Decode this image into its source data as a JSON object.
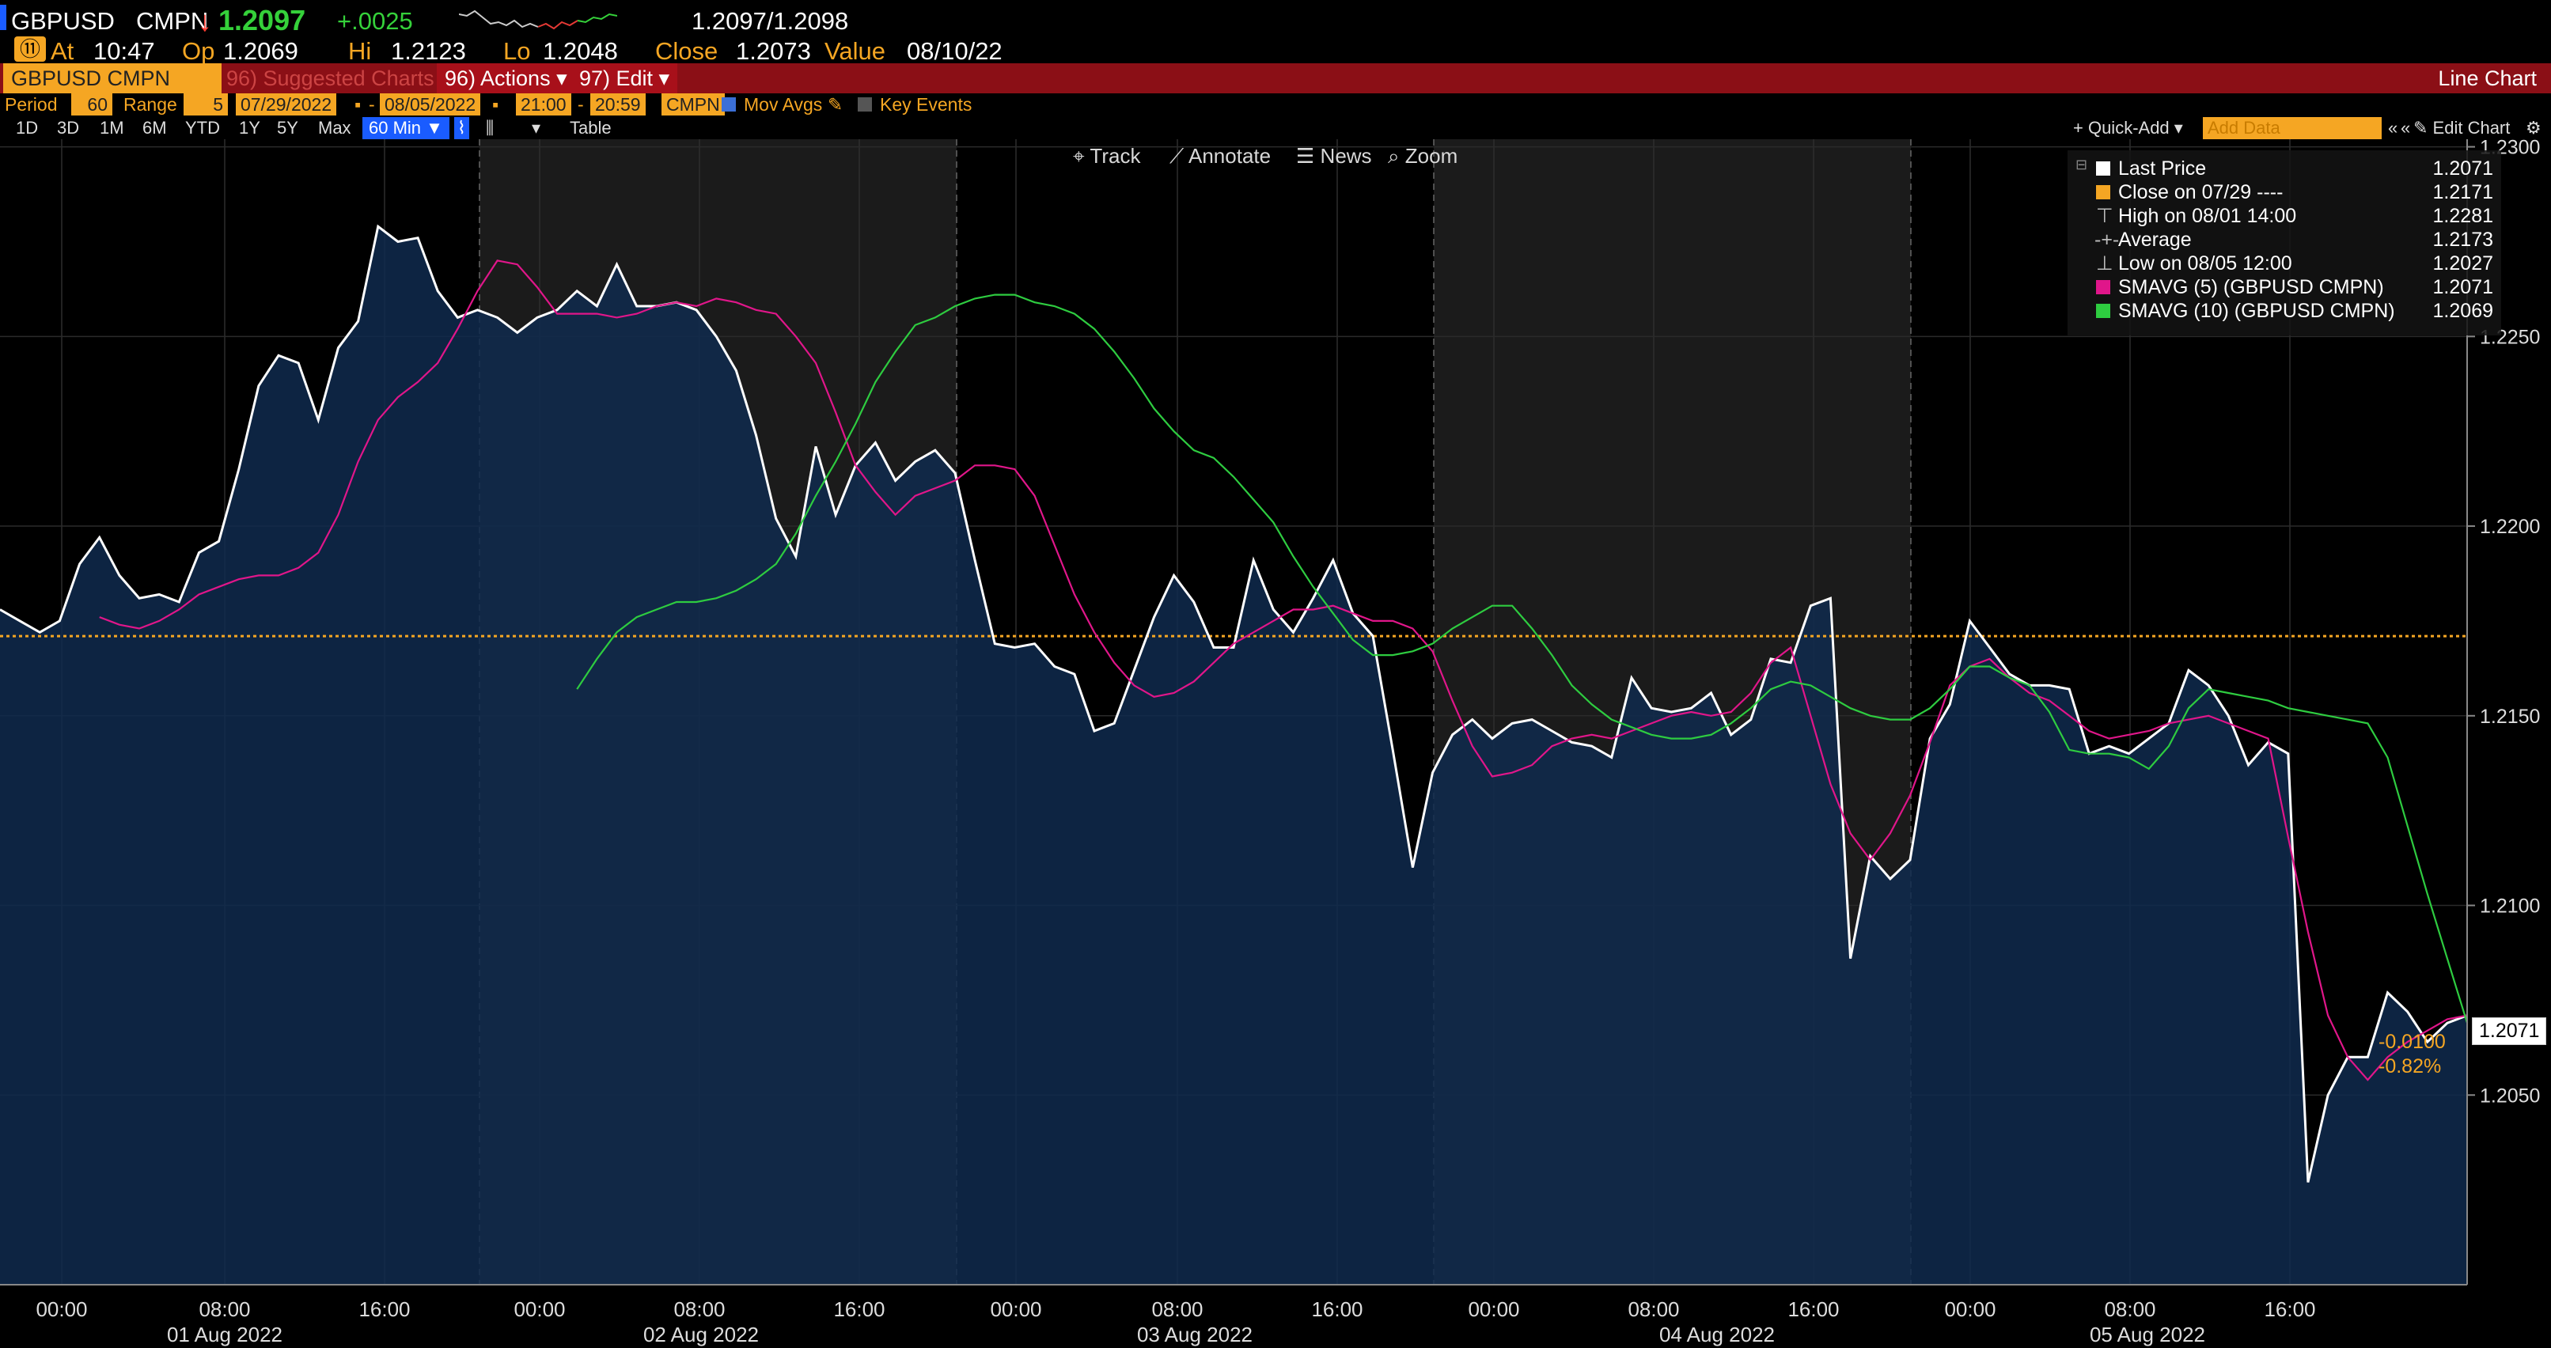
{
  "quote": {
    "ticker": "GBPUSD",
    "source": "CMPN",
    "arrow": "↓",
    "last": "1.2097",
    "change": "+.0025",
    "bid_ask": "1.2097/1.2098",
    "at_label": "At",
    "time": "10:47",
    "op_label": "Op",
    "open": "1.2069",
    "hi_label": "Hi",
    "high": "1.2123",
    "lo_label": "Lo",
    "low": "1.2048",
    "close_label": "Close",
    "close": "1.2073",
    "value_label": "Value",
    "date": "08/10/22"
  },
  "toolbar": {
    "security": "GBPUSD CMPN Curn",
    "suggested": "96) Suggested Charts",
    "actions": "96) Actions ▾",
    "edit": "97) Edit ▾",
    "chart_type": "Line Chart"
  },
  "period_bar": {
    "period_label": "Period",
    "period_value": "60",
    "range_label": "Range",
    "range_value": "5",
    "start_date": "07/29/2022",
    "dash": "-",
    "end_date": "08/05/2022",
    "start_time": "21:00",
    "end_time": "20:59",
    "source": "CMPN",
    "mov_avgs": "Mov Avgs",
    "key_events": "Key Events"
  },
  "range_buttons": [
    "1D",
    "3D",
    "1M",
    "6M",
    "YTD",
    "1Y",
    "5Y",
    "Max"
  ],
  "interval_button": "60 Min ▼",
  "table_button": "Table",
  "quick_add": "+ Quick-Add ▾",
  "add_data_placeholder": "Add Data",
  "edit_chart": "✎ Edit Chart",
  "tools": {
    "track": "Track",
    "annotate": "Annotate",
    "news": "News",
    "zoom": "Zoom"
  },
  "legend": [
    {
      "label": "Last Price",
      "value": "1.2071",
      "color": "#ffffff"
    },
    {
      "label": "Close on 07/29 ----",
      "value": "1.2171",
      "color": "#f5a623"
    },
    {
      "label": "High on 08/01 14:00",
      "value": "1.2281",
      "color": "#bbbbbb"
    },
    {
      "label": "Average",
      "value": "1.2173",
      "color": "#bbbbbb"
    },
    {
      "label": "Low on 08/05 12:00",
      "value": "1.2027",
      "color": "#bbbbbb"
    },
    {
      "label": "SMAVG (5) (GBPUSD CMPN)",
      "value": "1.2071",
      "color": "#e0168a"
    },
    {
      "label": "SMAVG (10) (GBPUSD CMPN)",
      "value": "1.2069",
      "color": "#2ecc40"
    }
  ],
  "right_labels": {
    "last_price": "1.2071",
    "net_change": "-0.0100",
    "pct_change": "-0.82%"
  },
  "chart_data": {
    "type": "line",
    "ylim": [
      1.2,
      1.2302
    ],
    "yticks": [
      "1.2300",
      "1.2250",
      "1.2200",
      "1.2150",
      "1.2100",
      "1.2050"
    ],
    "ytick_values": [
      1.23,
      1.225,
      1.22,
      1.215,
      1.21,
      1.205
    ],
    "reference_line": 1.2171,
    "x_hour_labels": [
      "00:00",
      "08:00",
      "16:00",
      "00:00",
      "08:00",
      "16:00",
      "00:00",
      "08:00",
      "16:00",
      "00:00",
      "08:00",
      "16:00",
      "00:00",
      "08:00",
      "16:00"
    ],
    "x_day_labels": [
      "01 Aug 2022",
      "02 Aug 2022",
      "03 Aug 2022",
      "04 Aug 2022",
      "05 Aug 2022"
    ],
    "series": [
      {
        "name": "Last Price",
        "color": "#ffffff",
        "values": [
          1.2178,
          1.2175,
          1.2172,
          1.2175,
          1.219,
          1.2197,
          1.2187,
          1.2181,
          1.2182,
          1.218,
          1.2193,
          1.2196,
          1.2215,
          1.2237,
          1.2245,
          1.2243,
          1.2228,
          1.2247,
          1.2254,
          1.2279,
          1.2275,
          1.2276,
          1.2262,
          1.2255,
          1.2257,
          1.2255,
          1.2251,
          1.2255,
          1.2257,
          1.2262,
          1.2258,
          1.2269,
          1.2258,
          1.2258,
          1.2259,
          1.2257,
          1.225,
          1.2241,
          1.2224,
          1.2202,
          1.2192,
          1.2221,
          1.2203,
          1.2216,
          1.2222,
          1.2212,
          1.2217,
          1.222,
          1.2214,
          1.2191,
          1.2169,
          1.2168,
          1.2169,
          1.2163,
          1.2161,
          1.2146,
          1.2148,
          1.2162,
          1.2176,
          1.2187,
          1.218,
          1.2168,
          1.2168,
          1.2191,
          1.2178,
          1.2172,
          1.2181,
          1.2191,
          1.2177,
          1.2171,
          1.2141,
          1.211,
          1.2135,
          1.2145,
          1.2149,
          1.2144,
          1.2148,
          1.2149,
          1.2146,
          1.2143,
          1.2142,
          1.2139,
          1.216,
          1.2152,
          1.2151,
          1.2152,
          1.2156,
          1.2145,
          1.2149,
          1.2165,
          1.2164,
          1.2179,
          1.2181,
          1.2086,
          1.2113,
          1.2107,
          1.2112,
          1.2144,
          1.2153,
          1.2175,
          1.2168,
          1.2161,
          1.2158,
          1.2158,
          1.2157,
          1.214,
          1.2142,
          1.214,
          1.2144,
          1.2148,
          1.2162,
          1.2158,
          1.215,
          1.2137,
          1.2143,
          1.214,
          1.2027,
          1.205,
          1.206,
          1.206,
          1.2077,
          1.2072,
          1.2064,
          1.2069,
          1.2071
        ]
      },
      {
        "name": "SMAVG (5) (GBPUSD CMPN)",
        "color": "#e0168a",
        "values": [
          1.2176,
          1.2174,
          1.2173,
          1.2175,
          1.2178,
          1.2182,
          1.2184,
          1.2186,
          1.2187,
          1.2187,
          1.2189,
          1.2193,
          1.2203,
          1.2217,
          1.2228,
          1.2234,
          1.2238,
          1.2243,
          1.2252,
          1.2262,
          1.227,
          1.2269,
          1.2263,
          1.2256,
          1.2256,
          1.2256,
          1.2255,
          1.2256,
          1.2258,
          1.2259,
          1.2258,
          1.226,
          1.2259,
          1.2257,
          1.2256,
          1.225,
          1.2243,
          1.223,
          1.2216,
          1.2209,
          1.2203,
          1.2208,
          1.221,
          1.2212,
          1.2216,
          1.2216,
          1.2215,
          1.2208,
          1.2195,
          1.2182,
          1.2172,
          1.2164,
          1.2158,
          1.2155,
          1.2156,
          1.2159,
          1.2164,
          1.2169,
          1.2172,
          1.2175,
          1.2178,
          1.2178,
          1.2179,
          1.2177,
          1.2175,
          1.2175,
          1.2173,
          1.2167,
          1.2154,
          1.2142,
          1.2134,
          1.2135,
          1.2137,
          1.2142,
          1.2144,
          1.2145,
          1.2144,
          1.2146,
          1.2148,
          1.215,
          1.2151,
          1.215,
          1.2151,
          1.2156,
          1.2164,
          1.2168,
          1.215,
          1.2132,
          1.2119,
          1.2112,
          1.2119,
          1.2129,
          1.2143,
          1.2158,
          1.2163,
          1.2165,
          1.216,
          1.2156,
          1.2154,
          1.215,
          1.2146,
          1.2144,
          1.2145,
          1.2146,
          1.2148,
          1.2149,
          1.215,
          1.2148,
          1.2146,
          1.2144,
          1.2118,
          1.2093,
          1.2071,
          1.206,
          1.2054,
          1.206,
          1.2064,
          1.2067,
          1.207,
          1.2071
        ]
      },
      {
        "name": "SMAVG (10) (GBPUSD CMPN)",
        "color": "#2ecc40",
        "values": [
          1.2157,
          1.2165,
          1.2172,
          1.2176,
          1.2178,
          1.218,
          1.218,
          1.2181,
          1.2183,
          1.2186,
          1.219,
          1.2198,
          1.2208,
          1.2217,
          1.2227,
          1.2238,
          1.2246,
          1.2253,
          1.2255,
          1.2258,
          1.226,
          1.2261,
          1.2261,
          1.2259,
          1.2258,
          1.2256,
          1.2252,
          1.2246,
          1.2239,
          1.2231,
          1.2225,
          1.222,
          1.2218,
          1.2213,
          1.2207,
          1.2201,
          1.2192,
          1.2184,
          1.2177,
          1.217,
          1.2166,
          1.2166,
          1.2167,
          1.2169,
          1.2173,
          1.2176,
          1.2179,
          1.2179,
          1.2173,
          1.2166,
          1.2158,
          1.2153,
          1.2149,
          1.2147,
          1.2145,
          1.2144,
          1.2144,
          1.2145,
          1.2148,
          1.2152,
          1.2157,
          1.2159,
          1.2158,
          1.2155,
          1.2152,
          1.215,
          1.2149,
          1.2149,
          1.2152,
          1.2157,
          1.2163,
          1.2163,
          1.216,
          1.2158,
          1.2151,
          1.2141,
          1.214,
          1.214,
          1.2139,
          1.2136,
          1.2142,
          1.2152,
          1.2157,
          1.2156,
          1.2155,
          1.2154,
          1.2152,
          1.2151,
          1.215,
          1.2149,
          1.2148,
          1.2139,
          1.2121,
          1.2103,
          1.2086,
          1.2069
        ]
      }
    ]
  }
}
